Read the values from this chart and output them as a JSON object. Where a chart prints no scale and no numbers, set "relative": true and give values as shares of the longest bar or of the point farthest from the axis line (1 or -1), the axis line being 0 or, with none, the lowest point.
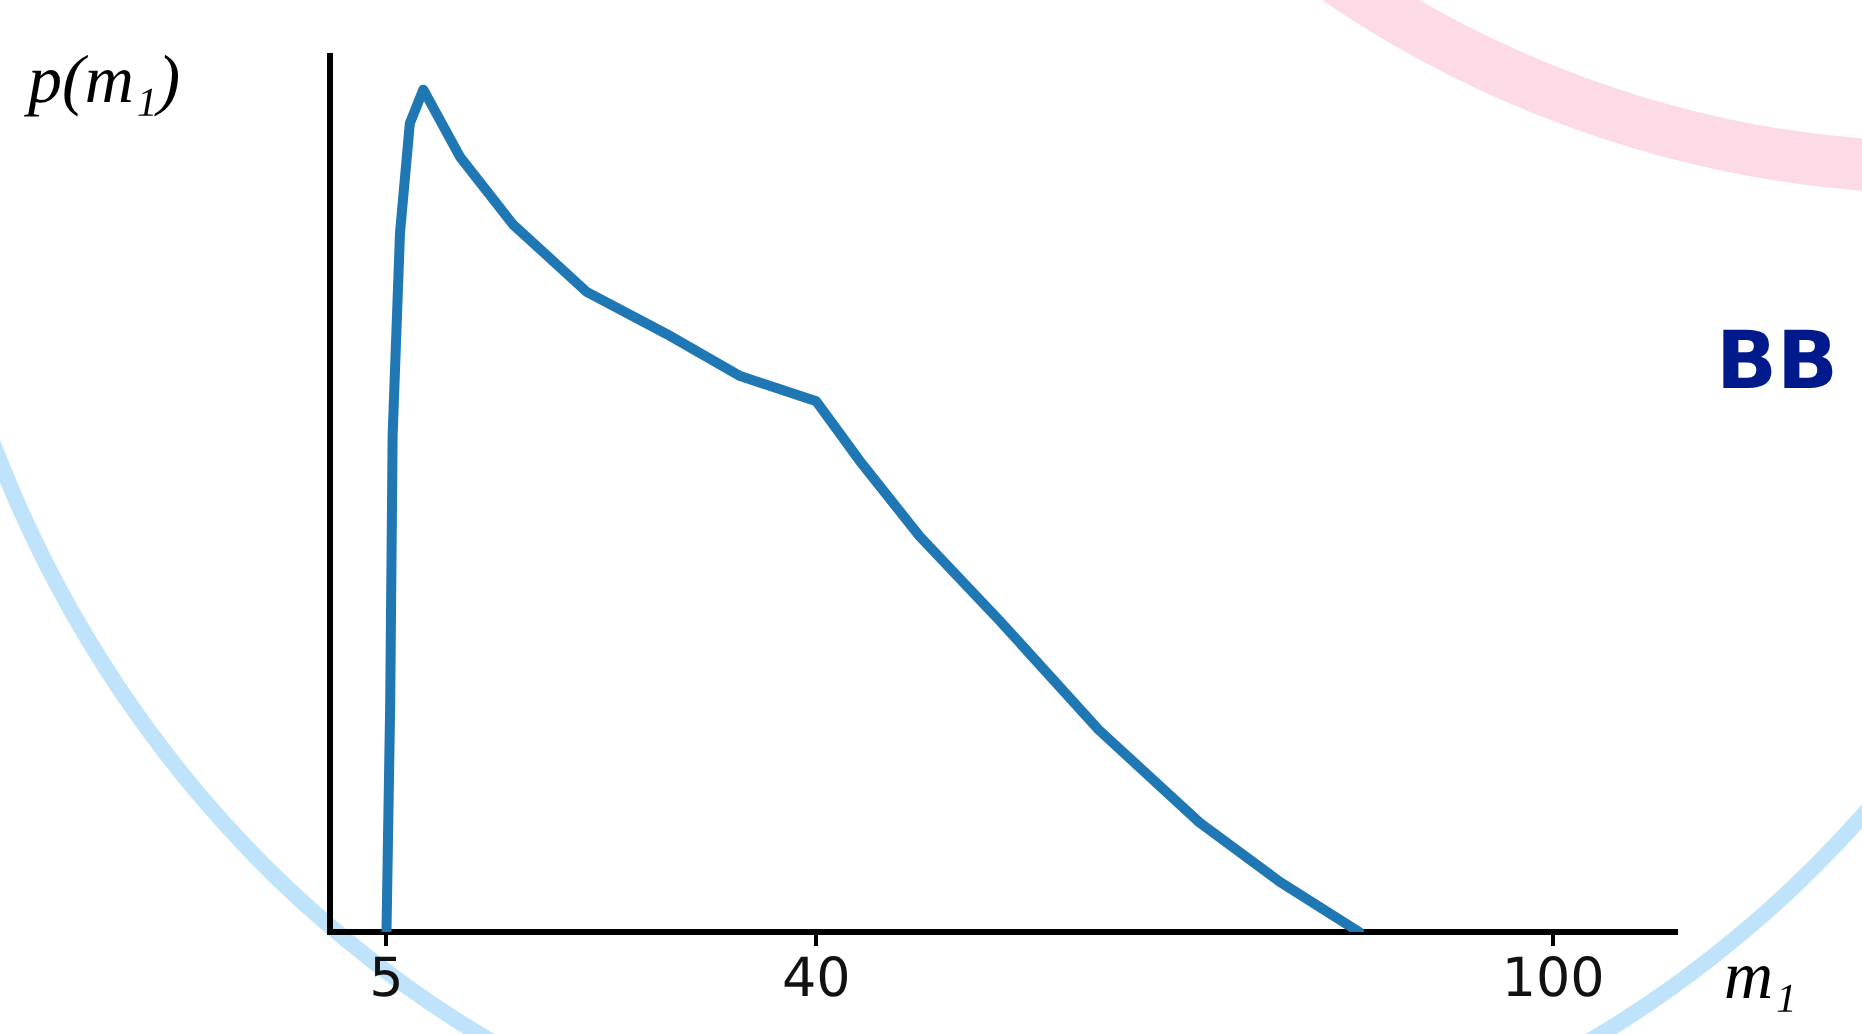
{
  "chart_data": {
    "type": "line",
    "xlabel": "m₁",
    "ylabel": "p(m₁)",
    "relative": true,
    "xlim": [
      0.4,
      110
    ],
    "xticks": [
      5,
      40,
      100
    ],
    "x": [
      5,
      5.3,
      5.5,
      6.1,
      6.9,
      8.0,
      11.0,
      15.3,
      21.3,
      27.8,
      33.8,
      40,
      43.5,
      48.4,
      54.9,
      63.0,
      71.2,
      77.7,
      84.2
    ],
    "series": [
      {
        "color": "#1f77b4",
        "values": [
          0,
          0.27,
          0.59,
          0.83,
          0.96,
          1,
          0.92,
          0.84,
          0.76,
          0.71,
          0.66,
          0.63,
          0.56,
          0.47,
          0.37,
          0.24,
          0.13,
          0.06,
          0
        ]
      }
    ],
    "annotations": [
      "BB"
    ],
    "grid": false,
    "legend": false,
    "marker": "none",
    "line_style": "solid"
  }
}
